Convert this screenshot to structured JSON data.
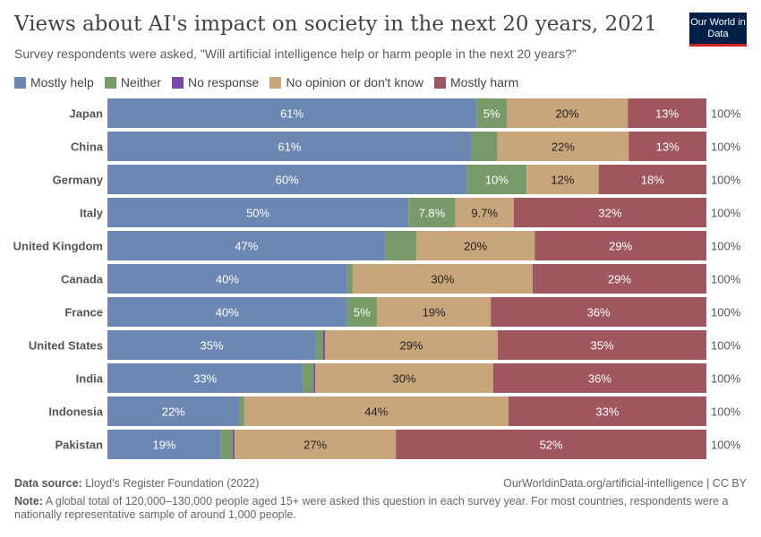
{
  "title": "Views about AI's impact on society in the next 20 years, 2021",
  "subtitle": "Survey respondents were asked, \"Will artificial intelligence help or harm people in the next 20 years?\"",
  "logo": "Our World in Data",
  "footer": {
    "source_label": "Data source:",
    "source": "Lloyd's Register Foundation (2022)",
    "url": "OurWorldinData.org/artificial-intelligence | CC BY",
    "note_label": "Note:",
    "note": "A global total of 120,000–130,000 people aged 15+ were asked this question in each survey year. For most countries, respondents were a nationally representative sample of around 1,000 people."
  },
  "chart_data": {
    "type": "bar",
    "orientation": "horizontal",
    "stacked": true,
    "xlim": [
      0,
      100
    ],
    "legend_position": "top-left",
    "categories": [
      "Japan",
      "China",
      "Germany",
      "Italy",
      "United Kingdom",
      "Canada",
      "France",
      "United States",
      "India",
      "Indonesia",
      "Pakistan"
    ],
    "totals": [
      "100%",
      "100%",
      "100%",
      "100%",
      "100%",
      "100%",
      "100%",
      "100%",
      "100%",
      "100%",
      "100%"
    ],
    "series": [
      {
        "name": "Mostly help",
        "color": "#6c88b2",
        "values": [
          61,
          61,
          60,
          50,
          47,
          40,
          40,
          35,
          33,
          22,
          19
        ],
        "labels": [
          "61%",
          "61%",
          "60%",
          "50%",
          "47%",
          "40%",
          "40%",
          "35%",
          "33%",
          "22%",
          "19%"
        ],
        "label_color": "#ffffff"
      },
      {
        "name": "Neither",
        "color": "#779a68",
        "values": [
          5,
          4.3,
          10,
          7.8,
          5.2,
          0.9,
          5,
          1.2,
          1.8,
          0.8,
          2
        ],
        "labels": [
          "5%",
          "",
          "10%",
          "7.8%",
          "",
          "",
          "5%",
          "",
          "",
          "",
          ""
        ],
        "label_color": "#ffffff"
      },
      {
        "name": "No response",
        "color": "#7a4ba6",
        "values": [
          0,
          0,
          0,
          0,
          0,
          0,
          0,
          0.3,
          0.3,
          0,
          0.3
        ],
        "labels": [
          "",
          "",
          "",
          "",
          "",
          "",
          "",
          "",
          "",
          "",
          ""
        ],
        "label_color": "#ffffff"
      },
      {
        "name": "No opinion or don't know",
        "color": "#c9a57b",
        "values": [
          20,
          22,
          12,
          9.7,
          20,
          30,
          19,
          29,
          30,
          44,
          27
        ],
        "labels": [
          "20%",
          "22%",
          "12%",
          "9.7%",
          "20%",
          "30%",
          "19%",
          "29%",
          "30%",
          "44%",
          "27%"
        ],
        "label_color": "#222222"
      },
      {
        "name": "Mostly harm",
        "color": "#a0565f",
        "values": [
          13,
          13,
          18,
          32,
          29,
          29,
          36,
          35,
          36,
          33,
          52
        ],
        "labels": [
          "13%",
          "13%",
          "18%",
          "32%",
          "29%",
          "29%",
          "36%",
          "35%",
          "36%",
          "33%",
          "52%"
        ],
        "label_color": "#ffffff"
      }
    ]
  }
}
